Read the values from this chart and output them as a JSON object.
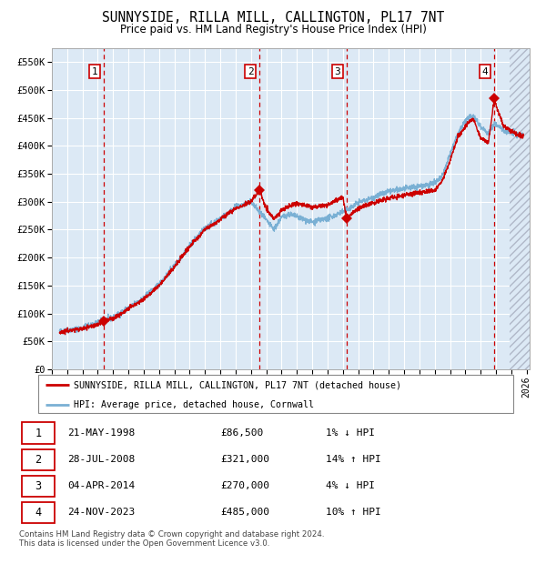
{
  "title": "SUNNYSIDE, RILLA MILL, CALLINGTON, PL17 7NT",
  "subtitle": "Price paid vs. HM Land Registry's House Price Index (HPI)",
  "ylim": [
    0,
    575000
  ],
  "xlim_start": 1995.5,
  "xlim_end": 2026.2,
  "yticks": [
    0,
    50000,
    100000,
    150000,
    200000,
    250000,
    300000,
    350000,
    400000,
    450000,
    500000,
    550000
  ],
  "ytick_labels": [
    "£0",
    "£50K",
    "£100K",
    "£150K",
    "£200K",
    "£250K",
    "£300K",
    "£350K",
    "£400K",
    "£450K",
    "£500K",
    "£550K"
  ],
  "xticks": [
    1995,
    1996,
    1997,
    1998,
    1999,
    2000,
    2001,
    2002,
    2003,
    2004,
    2005,
    2006,
    2007,
    2008,
    2009,
    2010,
    2011,
    2012,
    2013,
    2014,
    2015,
    2016,
    2017,
    2018,
    2019,
    2020,
    2021,
    2022,
    2023,
    2024,
    2025,
    2026
  ],
  "plot_bg_color": "#dce9f5",
  "grid_color": "#ffffff",
  "hpi_line_color": "#7ab0d4",
  "price_line_color": "#cc0000",
  "sale_marker_color": "#cc0000",
  "vline_color": "#cc0000",
  "sales": [
    {
      "year": 1998.386,
      "price": 86500,
      "label": "1"
    },
    {
      "year": 2008.569,
      "price": 321000,
      "label": "2"
    },
    {
      "year": 2014.253,
      "price": 270000,
      "label": "3"
    },
    {
      "year": 2023.899,
      "price": 485000,
      "label": "4"
    }
  ],
  "sale_table": [
    {
      "num": "1",
      "date": "21-MAY-1998",
      "price": "£86,500",
      "hpi": "1% ↓ HPI"
    },
    {
      "num": "2",
      "date": "28-JUL-2008",
      "price": "£321,000",
      "hpi": "14% ↑ HPI"
    },
    {
      "num": "3",
      "date": "04-APR-2014",
      "price": "£270,000",
      "hpi": "4% ↓ HPI"
    },
    {
      "num": "4",
      "date": "24-NOV-2023",
      "price": "£485,000",
      "hpi": "10% ↑ HPI"
    }
  ],
  "legend_line1": "SUNNYSIDE, RILLA MILL, CALLINGTON, PL17 7NT (detached house)",
  "legend_line2": "HPI: Average price, detached house, Cornwall",
  "footer": "Contains HM Land Registry data © Crown copyright and database right 2024.\nThis data is licensed under the Open Government Licence v3.0.",
  "hatched_start": 2024.917
}
